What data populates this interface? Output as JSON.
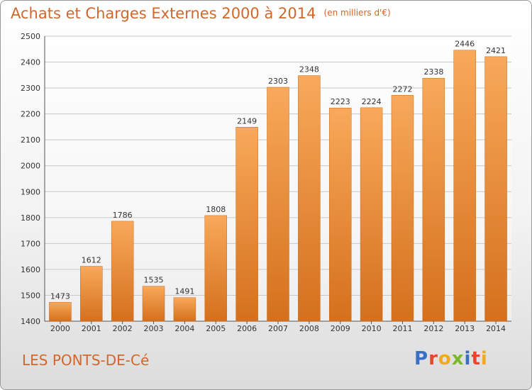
{
  "title": "Achats et Charges Externes 2000 à 2014",
  "unit": "(en milliers d'€)",
  "city": "LES PONTS-DE-Cé",
  "logo": {
    "letters": [
      "P",
      "r",
      "o",
      "x",
      "i",
      "t",
      "i"
    ],
    "colors": [
      "#3a6fc4",
      "#e8462c",
      "#f2a81f",
      "#7ab929",
      "#3a6fc4",
      "#e8462c",
      "#f2a81f"
    ]
  },
  "colors": {
    "bar_top": "#f8a95a",
    "bar_bottom": "#d4701d",
    "text_accent": "#d2672b"
  },
  "chart_data": {
    "type": "bar",
    "title": "Achats et Charges Externes 2000 à 2014",
    "categories": [
      "2000",
      "2001",
      "2002",
      "2003",
      "2004",
      "2005",
      "2006",
      "2007",
      "2008",
      "2009",
      "2010",
      "2011",
      "2012",
      "2013",
      "2014"
    ],
    "values": [
      1473,
      1612,
      1786,
      1535,
      1491,
      1808,
      2149,
      2303,
      2348,
      2223,
      2224,
      2272,
      2338,
      2446,
      2421
    ],
    "ylim": [
      1400,
      2500
    ],
    "yticks": [
      1400,
      1500,
      1600,
      1700,
      1800,
      1900,
      2000,
      2100,
      2200,
      2300,
      2400,
      2500
    ],
    "grid": true
  }
}
